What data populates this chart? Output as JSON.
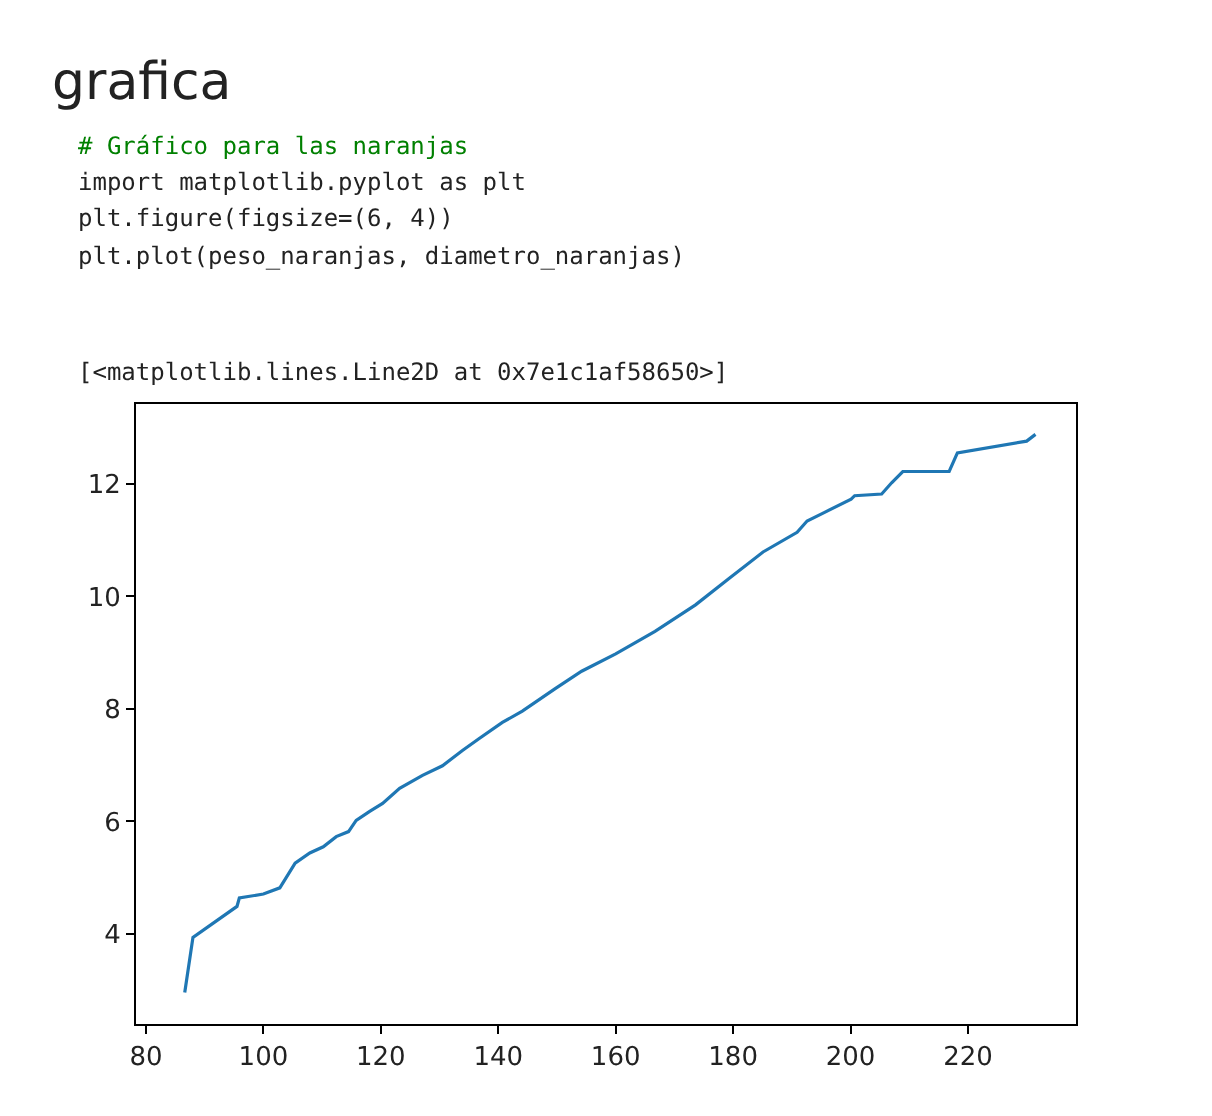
{
  "chart_data": {
    "type": "line",
    "title": "grafica",
    "annotations": [
      "# Gráfico para las naranjas",
      "import matplotlib.pyplot as plt",
      "plt.figure(figsize=(6, 4))",
      "plt.plot(peso_naranjas, diametro_naranjas)",
      "[<matplotlib.lines.Line2D at 0x7e1c1af58650>]"
    ],
    "x": [
      86.6,
      88.0,
      95.5,
      95.9,
      100.0,
      102.8,
      105.4,
      107.9,
      110.2,
      112.4,
      114.5,
      115.8,
      118.1,
      120.3,
      123.2,
      127.1,
      130.5,
      133.9,
      136.7,
      140.7,
      144.1,
      149.7,
      154.2,
      160.0,
      166.7,
      173.6,
      179.3,
      185.1,
      190.9,
      192.6,
      195.5,
      200.1,
      200.7,
      205.3,
      207.0,
      208.9,
      216.8,
      218.2,
      230.0,
      231.5
    ],
    "series": [
      {
        "color": "#1f77b4",
        "values": [
          2.96,
          3.94,
          4.49,
          4.64,
          4.71,
          4.82,
          5.26,
          5.44,
          5.55,
          5.73,
          5.82,
          6.02,
          6.18,
          6.32,
          6.59,
          6.82,
          6.99,
          7.26,
          7.47,
          7.76,
          7.96,
          8.36,
          8.67,
          8.98,
          9.38,
          9.85,
          10.32,
          10.79,
          11.14,
          11.34,
          11.49,
          11.73,
          11.79,
          11.82,
          12.02,
          12.22,
          12.22,
          12.55,
          12.76,
          12.88
        ]
      }
    ],
    "xlim": [
      78.3,
      238.4
    ],
    "ylim": [
      2.4,
      13.42
    ],
    "xticks": [
      80,
      100,
      120,
      140,
      160,
      180,
      200,
      220
    ],
    "yticks": [
      4,
      6,
      8,
      10,
      12
    ],
    "grid": false,
    "marker": "none",
    "line_style": "solid"
  }
}
